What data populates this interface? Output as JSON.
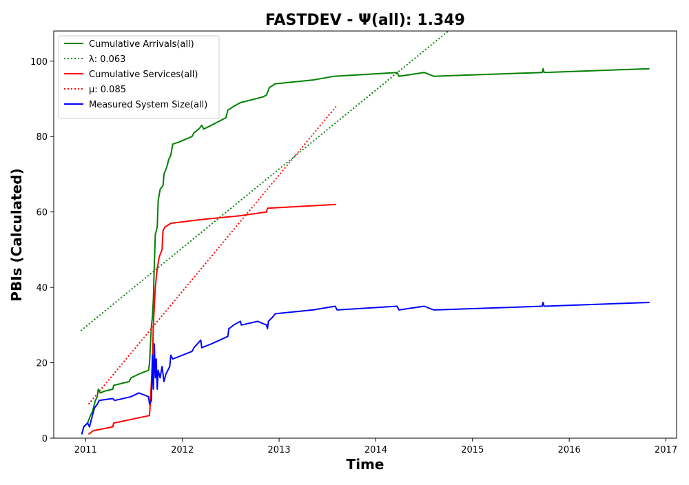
{
  "chart_data": {
    "type": "line",
    "title": "FASTDEV -  Ψ(all): 1.349",
    "xlabel": "Time",
    "ylabel": "PBIs (Calculated)",
    "xlim": [
      2010.67,
      2017.11
    ],
    "ylim": [
      0,
      108
    ],
    "x_ticks": [
      2011,
      2012,
      2013,
      2014,
      2015,
      2016,
      2017
    ],
    "y_ticks": [
      0,
      20,
      40,
      60,
      80,
      100
    ],
    "grid": false,
    "legend_position": "top-left",
    "legend": [
      {
        "label": "Cumulative Arrivals(all)",
        "color": "#008000",
        "style": "solid"
      },
      {
        "label": "λ: 0.063",
        "color": "#008000",
        "style": "dotted"
      },
      {
        "label": "Cumulative Services(all)",
        "color": "#ff0000",
        "style": "solid"
      },
      {
        "label": "μ: 0.085",
        "color": "#ff0000",
        "style": "dotted"
      },
      {
        "label": "Measured System Size(all)",
        "color": "#0000ff",
        "style": "solid"
      }
    ],
    "series": [
      {
        "name": "Cumulative Arrivals(all)",
        "color": "#008000",
        "style": "solid",
        "points": [
          [
            2010.96,
            1
          ],
          [
            2010.98,
            3
          ],
          [
            2011.02,
            4
          ],
          [
            2011.05,
            6
          ],
          [
            2011.07,
            7
          ],
          [
            2011.08,
            8
          ],
          [
            2011.1,
            10
          ],
          [
            2011.12,
            11
          ],
          [
            2011.13,
            13
          ],
          [
            2011.15,
            12
          ],
          [
            2011.2,
            12.5
          ],
          [
            2011.28,
            13
          ],
          [
            2011.29,
            14
          ],
          [
            2011.45,
            15
          ],
          [
            2011.47,
            16
          ],
          [
            2011.55,
            17
          ],
          [
            2011.6,
            17.5
          ],
          [
            2011.65,
            18
          ],
          [
            2011.66,
            20
          ],
          [
            2011.67,
            25
          ],
          [
            2011.68,
            30
          ],
          [
            2011.69,
            32
          ],
          [
            2011.7,
            37
          ],
          [
            2011.71,
            46
          ],
          [
            2011.72,
            54
          ],
          [
            2011.74,
            56
          ],
          [
            2011.75,
            63
          ],
          [
            2011.77,
            66
          ],
          [
            2011.8,
            67
          ],
          [
            2011.81,
            70
          ],
          [
            2011.84,
            72
          ],
          [
            2011.86,
            74
          ],
          [
            2011.88,
            75
          ],
          [
            2011.9,
            78
          ],
          [
            2011.96,
            78.5
          ],
          [
            2012.1,
            80
          ],
          [
            2012.12,
            81
          ],
          [
            2012.17,
            82
          ],
          [
            2012.2,
            83
          ],
          [
            2012.22,
            82
          ],
          [
            2012.3,
            83
          ],
          [
            2012.45,
            85
          ],
          [
            2012.47,
            87
          ],
          [
            2012.53,
            88
          ],
          [
            2012.6,
            89
          ],
          [
            2012.83,
            90.5
          ],
          [
            2012.87,
            91
          ],
          [
            2012.9,
            93
          ],
          [
            2012.96,
            94
          ],
          [
            2013.35,
            95
          ],
          [
            2013.57,
            96
          ],
          [
            2014.22,
            97
          ],
          [
            2014.24,
            96
          ],
          [
            2014.5,
            97
          ],
          [
            2014.6,
            96
          ],
          [
            2015.72,
            97
          ],
          [
            2015.73,
            98
          ],
          [
            2015.74,
            97
          ],
          [
            2016.83,
            98
          ]
        ]
      },
      {
        "name": "λ: 0.063",
        "color": "#008000",
        "style": "dotted",
        "points": [
          [
            2010.95,
            28.5
          ],
          [
            2014.75,
            108
          ]
        ]
      },
      {
        "name": "Cumulative Services(all)",
        "color": "#ff0000",
        "style": "solid",
        "points": [
          [
            2011.03,
            1
          ],
          [
            2011.08,
            2
          ],
          [
            2011.28,
            3
          ],
          [
            2011.29,
            4
          ],
          [
            2011.66,
            6
          ],
          [
            2011.67,
            10
          ],
          [
            2011.69,
            20
          ],
          [
            2011.7,
            30
          ],
          [
            2011.72,
            40
          ],
          [
            2011.74,
            45
          ],
          [
            2011.76,
            48
          ],
          [
            2011.79,
            50
          ],
          [
            2011.8,
            55
          ],
          [
            2011.82,
            56
          ],
          [
            2011.88,
            57
          ],
          [
            2012.2,
            58
          ],
          [
            2012.6,
            59
          ],
          [
            2012.87,
            60
          ],
          [
            2012.88,
            61
          ],
          [
            2013.59,
            62
          ]
        ]
      },
      {
        "name": "μ: 0.085",
        "color": "#ff0000",
        "style": "dotted",
        "points": [
          [
            2011.03,
            9
          ],
          [
            2013.59,
            88
          ]
        ]
      },
      {
        "name": "Measured System Size(all)",
        "color": "#0000ff",
        "style": "solid",
        "points": [
          [
            2010.96,
            1
          ],
          [
            2010.98,
            3
          ],
          [
            2011.02,
            4
          ],
          [
            2011.04,
            3
          ],
          [
            2011.06,
            5
          ],
          [
            2011.09,
            8
          ],
          [
            2011.12,
            9
          ],
          [
            2011.14,
            10
          ],
          [
            2011.28,
            10.5
          ],
          [
            2011.3,
            10
          ],
          [
            2011.47,
            11
          ],
          [
            2011.55,
            12
          ],
          [
            2011.65,
            11
          ],
          [
            2011.66,
            9
          ],
          [
            2011.68,
            10
          ],
          [
            2011.69,
            22
          ],
          [
            2011.7,
            13
          ],
          [
            2011.71,
            25
          ],
          [
            2011.72,
            16
          ],
          [
            2011.73,
            21
          ],
          [
            2011.74,
            13
          ],
          [
            2011.75,
            18
          ],
          [
            2011.77,
            16
          ],
          [
            2011.79,
            19
          ],
          [
            2011.81,
            15
          ],
          [
            2011.83,
            17
          ],
          [
            2011.87,
            19
          ],
          [
            2011.88,
            22
          ],
          [
            2011.9,
            21
          ],
          [
            2012.1,
            23
          ],
          [
            2012.12,
            24
          ],
          [
            2012.19,
            26
          ],
          [
            2012.2,
            24
          ],
          [
            2012.3,
            25
          ],
          [
            2012.47,
            27
          ],
          [
            2012.48,
            29
          ],
          [
            2012.53,
            30
          ],
          [
            2012.6,
            31
          ],
          [
            2012.61,
            30
          ],
          [
            2012.78,
            31
          ],
          [
            2012.87,
            30
          ],
          [
            2012.88,
            29
          ],
          [
            2012.89,
            31
          ],
          [
            2012.93,
            32
          ],
          [
            2012.96,
            33
          ],
          [
            2013.35,
            34
          ],
          [
            2013.58,
            35
          ],
          [
            2013.6,
            34
          ],
          [
            2014.22,
            35
          ],
          [
            2014.24,
            34
          ],
          [
            2014.5,
            35
          ],
          [
            2014.6,
            34
          ],
          [
            2015.72,
            35
          ],
          [
            2015.73,
            36
          ],
          [
            2015.74,
            35
          ],
          [
            2016.83,
            36
          ]
        ]
      }
    ]
  }
}
